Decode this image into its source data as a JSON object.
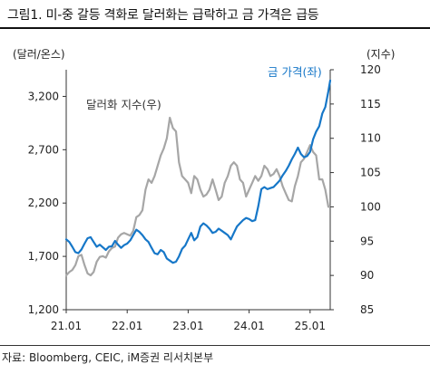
{
  "figure_title": "그림1.   미-중 갈등 격화로 달러화는 급락하고 금 가격은 급등",
  "source": "자료: Bloomberg, CEIC, iM증권 리서치본부",
  "chart_data": {
    "type": "line",
    "left_axis_unit": "(달러/온스)",
    "right_axis_unit": "(지수)",
    "left_ylim": [
      1200,
      3450
    ],
    "right_ylim": [
      85,
      120
    ],
    "left_ticks": [
      "1,200",
      "1,700",
      "2,200",
      "2,700",
      "3,200"
    ],
    "left_tick_values": [
      1200,
      1700,
      2200,
      2700,
      3200
    ],
    "right_ticks": [
      "85",
      "90",
      "95",
      "100",
      "105",
      "110",
      "115",
      "120"
    ],
    "right_tick_values": [
      85,
      90,
      95,
      100,
      105,
      110,
      115,
      120
    ],
    "x_ticks": [
      "21.01",
      "22.01",
      "23.01",
      "24.01",
      "25.01"
    ],
    "x_tick_values": [
      2021.0,
      2022.0,
      2023.0,
      2024.0,
      2025.0
    ],
    "xlim": [
      2021.0,
      2025.33
    ],
    "series": [
      {
        "name": "금 가격(좌)",
        "axis": "left",
        "color": "#1677c8",
        "x": [
          2021.0,
          2021.05,
          2021.1,
          2021.15,
          2021.2,
          2021.25,
          2021.3,
          2021.35,
          2021.4,
          2021.45,
          2021.5,
          2021.55,
          2021.6,
          2021.65,
          2021.7,
          2021.75,
          2021.8,
          2021.85,
          2021.9,
          2021.95,
          2022.0,
          2022.05,
          2022.1,
          2022.15,
          2022.2,
          2022.25,
          2022.3,
          2022.35,
          2022.4,
          2022.45,
          2022.5,
          2022.55,
          2022.6,
          2022.65,
          2022.7,
          2022.75,
          2022.8,
          2022.85,
          2022.9,
          2022.95,
          2023.0,
          2023.05,
          2023.1,
          2023.15,
          2023.2,
          2023.25,
          2023.3,
          2023.35,
          2023.4,
          2023.45,
          2023.5,
          2023.55,
          2023.6,
          2023.65,
          2023.7,
          2023.75,
          2023.8,
          2023.85,
          2023.9,
          2023.95,
          2024.0,
          2024.05,
          2024.1,
          2024.15,
          2024.2,
          2024.25,
          2024.3,
          2024.35,
          2024.4,
          2024.45,
          2024.5,
          2024.55,
          2024.6,
          2024.65,
          2024.7,
          2024.75,
          2024.8,
          2024.85,
          2024.9,
          2024.95,
          2025.0,
          2025.05,
          2025.1,
          2025.15,
          2025.2,
          2025.25,
          2025.3,
          2025.33
        ],
        "values": [
          1860,
          1835,
          1790,
          1740,
          1730,
          1765,
          1820,
          1870,
          1880,
          1835,
          1790,
          1810,
          1785,
          1760,
          1790,
          1795,
          1845,
          1810,
          1780,
          1805,
          1820,
          1850,
          1900,
          1950,
          1930,
          1900,
          1860,
          1835,
          1780,
          1730,
          1720,
          1760,
          1740,
          1680,
          1660,
          1640,
          1650,
          1700,
          1770,
          1800,
          1860,
          1920,
          1850,
          1880,
          1980,
          2010,
          1990,
          1960,
          1920,
          1930,
          1960,
          1940,
          1920,
          1900,
          1860,
          1920,
          1980,
          2010,
          2040,
          2060,
          2050,
          2030,
          2040,
          2170,
          2330,
          2350,
          2330,
          2340,
          2350,
          2380,
          2410,
          2460,
          2500,
          2550,
          2610,
          2660,
          2720,
          2660,
          2630,
          2640,
          2680,
          2800,
          2870,
          2920,
          3040,
          3100,
          3250,
          3350
        ]
      },
      {
        "name": "달러화 지수(우)",
        "axis": "right",
        "color": "#a6a6a6",
        "x": [
          2021.0,
          2021.05,
          2021.1,
          2021.15,
          2021.2,
          2021.25,
          2021.3,
          2021.35,
          2021.4,
          2021.45,
          2021.5,
          2021.55,
          2021.6,
          2021.65,
          2021.7,
          2021.75,
          2021.8,
          2021.85,
          2021.9,
          2021.95,
          2022.0,
          2022.05,
          2022.1,
          2022.15,
          2022.2,
          2022.25,
          2022.3,
          2022.35,
          2022.4,
          2022.45,
          2022.5,
          2022.55,
          2022.6,
          2022.65,
          2022.7,
          2022.75,
          2022.8,
          2022.85,
          2022.9,
          2022.95,
          2023.0,
          2023.05,
          2023.1,
          2023.15,
          2023.2,
          2023.25,
          2023.3,
          2023.35,
          2023.4,
          2023.45,
          2023.5,
          2023.55,
          2023.6,
          2023.65,
          2023.7,
          2023.75,
          2023.8,
          2023.85,
          2023.9,
          2023.95,
          2024.0,
          2024.05,
          2024.1,
          2024.15,
          2024.2,
          2024.25,
          2024.3,
          2024.35,
          2024.4,
          2024.45,
          2024.5,
          2024.55,
          2024.6,
          2024.65,
          2024.7,
          2024.75,
          2024.8,
          2024.85,
          2024.9,
          2024.95,
          2025.0,
          2025.05,
          2025.1,
          2025.15,
          2025.2,
          2025.25,
          2025.3,
          2025.33
        ],
        "values": [
          90.0,
          90.5,
          90.8,
          91.5,
          92.8,
          93.0,
          91.5,
          90.3,
          90.0,
          90.5,
          92.0,
          92.7,
          92.8,
          92.6,
          93.5,
          94.0,
          94.2,
          95.5,
          96.0,
          96.2,
          96.0,
          95.8,
          96.5,
          98.5,
          98.8,
          99.5,
          102.5,
          104.0,
          103.5,
          104.5,
          106.0,
          107.5,
          108.5,
          110.0,
          113.0,
          111.5,
          111.0,
          106.5,
          104.5,
          104.0,
          103.5,
          102.0,
          104.5,
          104.0,
          102.5,
          101.5,
          101.8,
          102.5,
          104.0,
          102.5,
          101.0,
          101.5,
          103.5,
          104.5,
          106.0,
          106.5,
          106.0,
          104.0,
          103.5,
          101.5,
          102.5,
          103.5,
          104.5,
          103.8,
          104.5,
          106.0,
          105.5,
          104.5,
          104.8,
          105.5,
          104.5,
          103.0,
          102.0,
          101.0,
          100.8,
          103.0,
          104.5,
          106.5,
          107.0,
          108.0,
          109.0,
          108.0,
          107.5,
          104.0,
          104.0,
          102.5,
          100.0,
          100.0
        ]
      }
    ]
  }
}
